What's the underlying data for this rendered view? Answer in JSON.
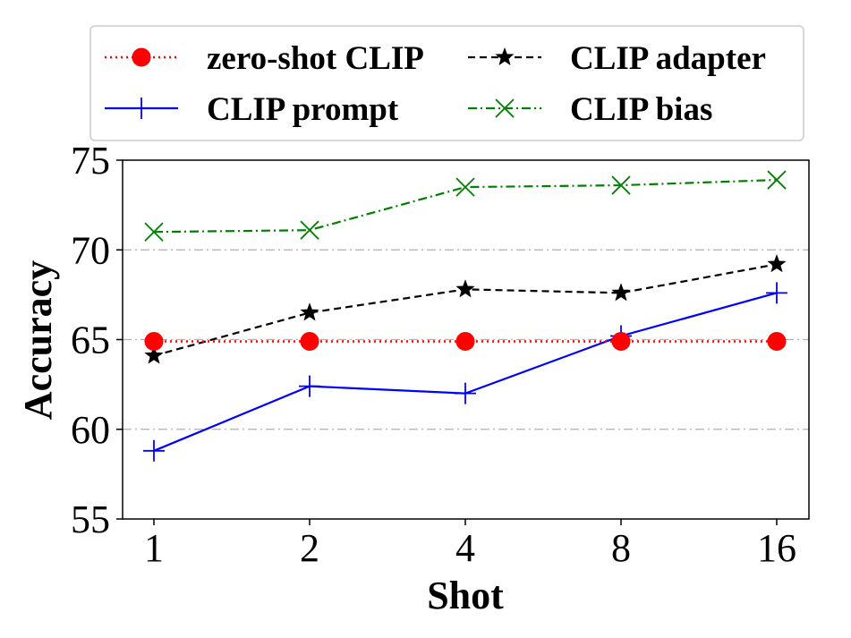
{
  "chart_data": {
    "type": "line",
    "title": "",
    "xlabel": "Shot",
    "ylabel": "Accuracy",
    "categories": [
      "1",
      "2",
      "4",
      "8",
      "16"
    ],
    "ylim": [
      55,
      75
    ],
    "yticks": [
      55,
      60,
      65,
      70,
      75
    ],
    "grid": "horizontal dash-dot at 60, 65, 70",
    "legend_position": "top",
    "series": [
      {
        "name": "zero-shot CLIP",
        "values": [
          64.9,
          64.9,
          64.9,
          64.9,
          64.9
        ],
        "color": "#ff0000",
        "marker": "circle",
        "linestyle": "dotted"
      },
      {
        "name": "CLIP adapter",
        "values": [
          64.1,
          66.5,
          67.8,
          67.6,
          69.2
        ],
        "color": "#000000",
        "marker": "star",
        "linestyle": "dashed"
      },
      {
        "name": "CLIP prompt",
        "values": [
          58.8,
          62.4,
          62.0,
          65.2,
          67.6
        ],
        "color": "#0000ff",
        "marker": "plus",
        "linestyle": "solid"
      },
      {
        "name": "CLIP bias",
        "values": [
          71.0,
          71.1,
          73.5,
          73.6,
          73.9
        ],
        "color": "#008000",
        "marker": "x",
        "linestyle": "dashdot"
      }
    ]
  }
}
